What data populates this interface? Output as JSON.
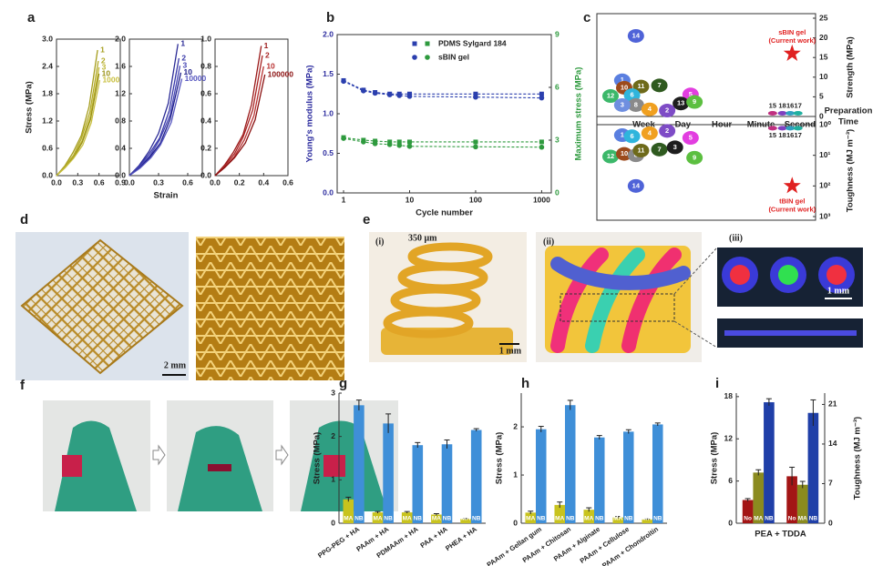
{
  "panel_labels": [
    "a",
    "b",
    "c",
    "d",
    "e",
    "f",
    "g",
    "h",
    "i"
  ],
  "photo_texts": {
    "d_scale": "2 mm",
    "e_label_i": "(i)",
    "e_size": "350 μm",
    "e_scale_i": "1 mm",
    "e_label_ii": "(ii)",
    "e_label_iii": "(iii)",
    "e_scale_iii": "1 mm"
  },
  "chart_data": [
    {
      "type": "line",
      "end_labels": true,
      "xlim": [
        0,
        0.9
      ],
      "xticks": [
        {
          "value": 0,
          "label": "0.0"
        },
        0.3,
        0.6,
        0.9
      ],
      "ylim": [
        0,
        3
      ],
      "yticks": [
        {
          "value": 0,
          "label": "0.0"
        },
        0.6,
        1.2,
        1.8,
        2.4,
        {
          "value": 3,
          "label": "3.0"
        }
      ],
      "y_label": "Stress (MPa)",
      "series": [
        {
          "name": "1",
          "color": "#a59d1c",
          "x": [
            0,
            0.12,
            0.23,
            0.35,
            0.46,
            0.58
          ],
          "values": [
            0,
            0.22,
            0.5,
            0.88,
            1.52,
            2.76
          ]
        },
        {
          "name": "2",
          "color": "#b3aa28",
          "x": [
            0,
            0.12,
            0.24,
            0.35,
            0.47,
            0.59
          ],
          "values": [
            0,
            0.2,
            0.45,
            0.81,
            1.39,
            2.52
          ]
        },
        {
          "name": "3",
          "color": "#bfb634",
          "x": [
            0,
            0.12,
            0.24,
            0.36,
            0.48,
            0.6
          ],
          "values": [
            0,
            0.19,
            0.43,
            0.76,
            1.31,
            2.38
          ]
        },
        {
          "name": "10",
          "color": "#9a9216",
          "x": [
            0,
            0.12,
            0.24,
            0.36,
            0.48,
            0.6
          ],
          "values": [
            0,
            0.18,
            0.4,
            0.72,
            1.23,
            2.24
          ]
        },
        {
          "name": "1000",
          "color": "#c9c040",
          "x": [
            0,
            0.12,
            0.24,
            0.37,
            0.49,
            0.61
          ],
          "values": [
            0,
            0.17,
            0.38,
            0.67,
            1.16,
            2.1
          ]
        }
      ]
    },
    {
      "type": "line",
      "end_labels": true,
      "xlim": [
        0,
        0.75
      ],
      "xticks": [
        {
          "value": 0,
          "label": "0.0"
        },
        0.3,
        0.6
      ],
      "x_label": "Strain",
      "ylim": [
        0,
        2
      ],
      "yticks": [
        {
          "value": 0,
          "label": "0.0"
        },
        0.4,
        0.8,
        1.2,
        1.6,
        {
          "value": 2,
          "label": "2.0"
        }
      ],
      "series": [
        {
          "name": "1",
          "color": "#2a2a96",
          "x": [
            0,
            0.1,
            0.2,
            0.3,
            0.4,
            0.5
          ],
          "values": [
            0,
            0.15,
            0.35,
            0.62,
            1.06,
            1.93
          ]
        },
        {
          "name": "2",
          "color": "#3838a8",
          "x": [
            0,
            0.1,
            0.2,
            0.31,
            0.41,
            0.51
          ],
          "values": [
            0,
            0.14,
            0.31,
            0.55,
            0.95,
            1.72
          ]
        },
        {
          "name": "3",
          "color": "#4646b4",
          "x": [
            0,
            0.1,
            0.21,
            0.31,
            0.42,
            0.52
          ],
          "values": [
            0,
            0.13,
            0.29,
            0.52,
            0.89,
            1.61
          ]
        },
        {
          "name": "10",
          "color": "#20208a",
          "x": [
            0,
            0.11,
            0.21,
            0.32,
            0.42,
            0.53
          ],
          "values": [
            0,
            0.12,
            0.27,
            0.48,
            0.83,
            1.51
          ]
        },
        {
          "name": "10000",
          "color": "#5656c0",
          "x": [
            0,
            0.11,
            0.22,
            0.32,
            0.43,
            0.54
          ],
          "values": [
            0,
            0.11,
            0.26,
            0.45,
            0.78,
            1.42
          ]
        }
      ]
    },
    {
      "type": "line",
      "end_labels": true,
      "xlim": [
        0,
        0.6
      ],
      "xticks": [
        {
          "value": 0,
          "label": "0.0"
        },
        0.2,
        0.4,
        0.6
      ],
      "ylim": [
        0,
        1
      ],
      "yticks": [
        {
          "value": 0,
          "label": "0.0"
        },
        0.2,
        0.4,
        0.6,
        0.8,
        {
          "value": 1,
          "label": "1.0"
        }
      ],
      "series": [
        {
          "name": "1",
          "color": "#9a1818",
          "x": [
            0,
            0.08,
            0.15,
            0.23,
            0.3,
            0.38
          ],
          "values": [
            0,
            0.08,
            0.17,
            0.3,
            0.52,
            0.95
          ]
        },
        {
          "name": "2",
          "color": "#a82424",
          "x": [
            0,
            0.08,
            0.16,
            0.23,
            0.31,
            0.39
          ],
          "values": [
            0,
            0.07,
            0.16,
            0.28,
            0.48,
            0.88
          ]
        },
        {
          "name": "10",
          "color": "#b83232",
          "x": [
            0,
            0.08,
            0.16,
            0.24,
            0.32,
            0.4
          ],
          "values": [
            0,
            0.06,
            0.14,
            0.26,
            0.44,
            0.8
          ]
        },
        {
          "name": "100000",
          "color": "#8a1010",
          "x": [
            0,
            0.08,
            0.16,
            0.25,
            0.33,
            0.41
          ],
          "values": [
            0,
            0.06,
            0.13,
            0.24,
            0.41,
            0.74
          ]
        }
      ]
    },
    {
      "type": "line",
      "x": [
        1,
        2,
        3,
        5,
        7,
        10,
        100,
        1000
      ],
      "xlog": true,
      "xlim": [
        0.8,
        1400
      ],
      "xticks": [
        1,
        10,
        100,
        1000
      ],
      "x_label": "Cycle number",
      "ylim": [
        0,
        2
      ],
      "yticks": [
        {
          "value": 0,
          "label": "0.0"
        },
        0.5,
        {
          "value": 1,
          "label": "1.0"
        },
        1.5,
        {
          "value": 2,
          "label": "2.0"
        }
      ],
      "y_label": "Young's modulus (MPa)",
      "y_color": "#2b2b9e",
      "y2lim": [
        0,
        9
      ],
      "y2ticks": [
        0,
        3,
        6,
        9
      ],
      "y2_label": "Maximum stress (MPa)",
      "y2_color": "#2e9a3e",
      "legend": "upper-right",
      "series": [
        {
          "name": "PDMS Sylgard 184",
          "color": "#2b3fae",
          "marker": "square",
          "dash": true,
          "values": [
            1.42,
            1.3,
            1.27,
            1.25,
            1.25,
            1.25,
            1.25,
            1.25
          ]
        },
        {
          "name": "sBIN gel",
          "color": "#2b3fae",
          "marker": "circle",
          "dash": true,
          "values": [
            1.41,
            1.29,
            1.26,
            1.24,
            1.23,
            1.22,
            1.21,
            1.2
          ]
        },
        {
          "color": "#2e9a3e",
          "marker": "square",
          "dash": true,
          "axis": "y2",
          "values": [
            3.15,
            3.0,
            2.95,
            2.9,
            2.9,
            2.9,
            2.9,
            2.9
          ]
        },
        {
          "color": "#2e9a3e",
          "marker": "circle",
          "dash": true,
          "axis": "y2",
          "values": [
            3.1,
            2.9,
            2.8,
            2.75,
            2.7,
            2.65,
            2.62,
            2.6
          ]
        }
      ]
    },
    {
      "type": "scatter",
      "y_side": "right",
      "categories": [
        "Week",
        "Day",
        "Hour",
        "Minute",
        "Second"
      ],
      "x_label": [
        "Preparation",
        "Time"
      ],
      "xlim": [
        -1.2,
        4.4
      ],
      "ylim": [
        0,
        25
      ],
      "yticks": [
        0,
        5,
        10,
        15,
        20,
        25
      ],
      "y_label": "Strength (MPa)",
      "labels": [
        "14",
        "1",
        "10",
        "11",
        "7",
        "12",
        "6",
        "5",
        "13",
        "8",
        "3",
        "9",
        "4",
        "2",
        "15",
        "18",
        "16",
        "17"
      ],
      "x": [
        -0.2,
        -0.55,
        -0.5,
        -0.07,
        0.4,
        -0.85,
        -0.3,
        1.2,
        0.95,
        -0.2,
        -0.55,
        1.3,
        0.15,
        0.6,
        3.3,
        3.55,
        3.75,
        3.95
      ],
      "values": [
        20.5,
        9.2,
        7.3,
        7.6,
        7.9,
        5.2,
        5.4,
        5.6,
        3.3,
        2.9,
        2.9,
        3.7,
        1.8,
        1.5,
        0.8,
        0.8,
        0.8,
        0.8
      ],
      "colors": [
        "#4f63d8",
        "#5a7fe0",
        "#9c4a1c",
        "#6e6a1a",
        "#2f5a1f",
        "#3cb86a",
        "#2fb5dc",
        "#e23ee0",
        "#1e1e1e",
        "#8a8a8a",
        "#6f8fe0",
        "#5cbf40",
        "#f0a020",
        "#7e4cc6",
        "#c03080",
        "#8040c0",
        "#30a0c0",
        "#20b0a0"
      ],
      "annotations": [
        {
          "text": [
            "sBIN gel",
            "(Current work)"
          ],
          "x": 3.8,
          "value": 16,
          "color": "#e02020"
        }
      ]
    },
    {
      "type": "scatter",
      "y_side": "right",
      "ylog": true,
      "yinvert": true,
      "xlim": [
        -1.2,
        4.4
      ],
      "ylim": [
        1,
        1000
      ],
      "yticks": [
        {
          "value": 1,
          "label": "10⁰"
        },
        {
          "value": 10,
          "label": "10¹"
        },
        {
          "value": 100,
          "label": "10²"
        },
        {
          "value": 1000,
          "label": "10³"
        }
      ],
      "y_label": "Toughness (MJ m⁻³)",
      "labels": [
        "14",
        "1",
        "6",
        "4",
        "2",
        "5",
        "12",
        "10",
        "8",
        "11",
        "7",
        "3",
        "9",
        "15",
        "18",
        "16",
        "17"
      ],
      "x": [
        -0.2,
        -0.55,
        -0.3,
        0.15,
        0.6,
        1.2,
        -0.85,
        -0.5,
        -0.2,
        -0.07,
        0.4,
        0.8,
        1.3,
        3.3,
        3.55,
        3.75,
        3.95
      ],
      "values": [
        100,
        2.2,
        2.4,
        1.9,
        1.6,
        2.7,
        11,
        9,
        10,
        7,
        6.5,
        5.5,
        12,
        1.3,
        1.3,
        1.3,
        1.3
      ],
      "colors": [
        "#4f63d8",
        "#5a7fe0",
        "#2fb5dc",
        "#f0a020",
        "#7e4cc6",
        "#e23ee0",
        "#3cb86a",
        "#9c4a1c",
        "#8a8a8a",
        "#6e6a1a",
        "#2f5a1f",
        "#1e1e1e",
        "#5cbf40",
        "#c03080",
        "#8040c0",
        "#30a0c0",
        "#20b0a0"
      ],
      "annotations": [
        {
          "text": [
            "tBIN gel",
            "(Current work)"
          ],
          "x": 3.8,
          "value": 100,
          "color": "#e02020"
        }
      ]
    },
    {
      "type": "bar",
      "categories": [
        "PPG-PEG + HA",
        "PAAm + HA",
        "PDMAAm + HA",
        "PAA + HA",
        "PHEA + HA"
      ],
      "ylim": [
        0,
        3
      ],
      "yticks": [
        0,
        1,
        2,
        3
      ],
      "y_label": "Stress (MPa)",
      "series": [
        {
          "name": "MA",
          "color": "#c8c31e",
          "values": [
            0.55,
            0.25,
            0.25,
            0.2,
            0.1
          ],
          "errors": [
            0.05,
            0.02,
            0.02,
            0.02,
            0.01
          ]
        },
        {
          "name": "NB",
          "color": "#3f8fd8",
          "values": [
            2.72,
            2.3,
            1.8,
            1.82,
            2.15
          ],
          "errors": [
            0.12,
            0.22,
            0.06,
            0.1,
            0.03
          ]
        }
      ]
    },
    {
      "type": "bar",
      "categories": [
        "PAAm + Gellan gum",
        "PAAm + Chitosan",
        "PAAm + Alginate",
        "PAAm + Cellulose",
        "PAAm + Chondroitin"
      ],
      "ylim": [
        0,
        2.7
      ],
      "yticks": [
        0,
        1,
        2
      ],
      "y_label": "Stress (MPa)",
      "series": [
        {
          "name": "MA",
          "color": "#c8c31e",
          "values": [
            0.22,
            0.38,
            0.28,
            0.12,
            0.08
          ],
          "errors": [
            0.03,
            0.06,
            0.04,
            0.02,
            0.01
          ]
        },
        {
          "name": "NB",
          "color": "#3f8fd8",
          "values": [
            1.95,
            2.45,
            1.78,
            1.9,
            2.05
          ],
          "errors": [
            0.06,
            0.1,
            0.04,
            0.04,
            0.03
          ]
        }
      ]
    },
    {
      "type": "bar",
      "categories": [
        null,
        null
      ],
      "category_axes": [
        "y",
        "y2"
      ],
      "x_label": "PEA + TDDA",
      "ylim": [
        0,
        18.5
      ],
      "yticks": [
        0,
        6,
        12,
        18
      ],
      "y_label": "Stress (MPa)",
      "y2lim": [
        0,
        23
      ],
      "y2ticks": [
        0,
        7,
        14,
        21
      ],
      "y2_label": "Toughness (MJ m⁻³)",
      "series": [
        {
          "name": "No",
          "color": "#a31515",
          "values": [
            3.3,
            8.3
          ],
          "errors": [
            0.2,
            1.6
          ]
        },
        {
          "name": "MA",
          "color": "#8b8b1f",
          "values": [
            7.2,
            6.8
          ],
          "errors": [
            0.4,
            0.6
          ]
        },
        {
          "name": "NB",
          "color": "#1f3fa8",
          "values": [
            17.2,
            19.5
          ],
          "errors": [
            0.5,
            2.3
          ]
        }
      ]
    }
  ]
}
